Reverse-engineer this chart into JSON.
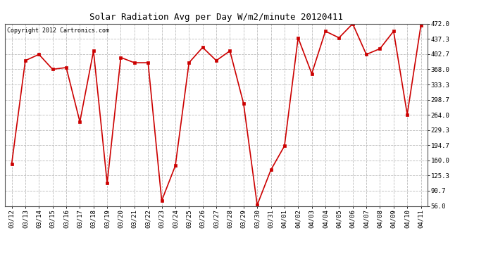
{
  "title": "Solar Radiation Avg per Day W/m2/minute 20120411",
  "copyright": "Copyright 2012 Cartronics.com",
  "dates": [
    "03/12",
    "03/13",
    "03/14",
    "03/15",
    "03/16",
    "03/17",
    "03/18",
    "03/19",
    "03/20",
    "03/21",
    "03/22",
    "03/23",
    "03/24",
    "03/25",
    "03/26",
    "03/27",
    "03/28",
    "03/29",
    "03/30",
    "03/31",
    "04/01",
    "04/02",
    "04/03",
    "04/04",
    "04/05",
    "04/06",
    "04/07",
    "04/08",
    "04/09",
    "04/10",
    "04/11"
  ],
  "values": [
    152,
    388,
    402,
    368,
    372,
    248,
    410,
    108,
    395,
    383,
    383,
    68,
    148,
    383,
    418,
    388,
    410,
    290,
    58,
    138,
    193,
    440,
    358,
    455,
    440,
    472,
    402,
    415,
    455,
    265,
    468
  ],
  "line_color": "#cc0000",
  "marker_color": "#cc0000",
  "background_color": "#ffffff",
  "grid_color": "#bbbbbb",
  "yticks": [
    56.0,
    90.7,
    125.3,
    160.0,
    194.7,
    229.3,
    264.0,
    298.7,
    333.3,
    368.0,
    402.7,
    437.3,
    472.0
  ],
  "ylim": [
    56.0,
    472.0
  ],
  "title_fontsize": 9,
  "copyright_fontsize": 6,
  "tick_fontsize": 6.5
}
